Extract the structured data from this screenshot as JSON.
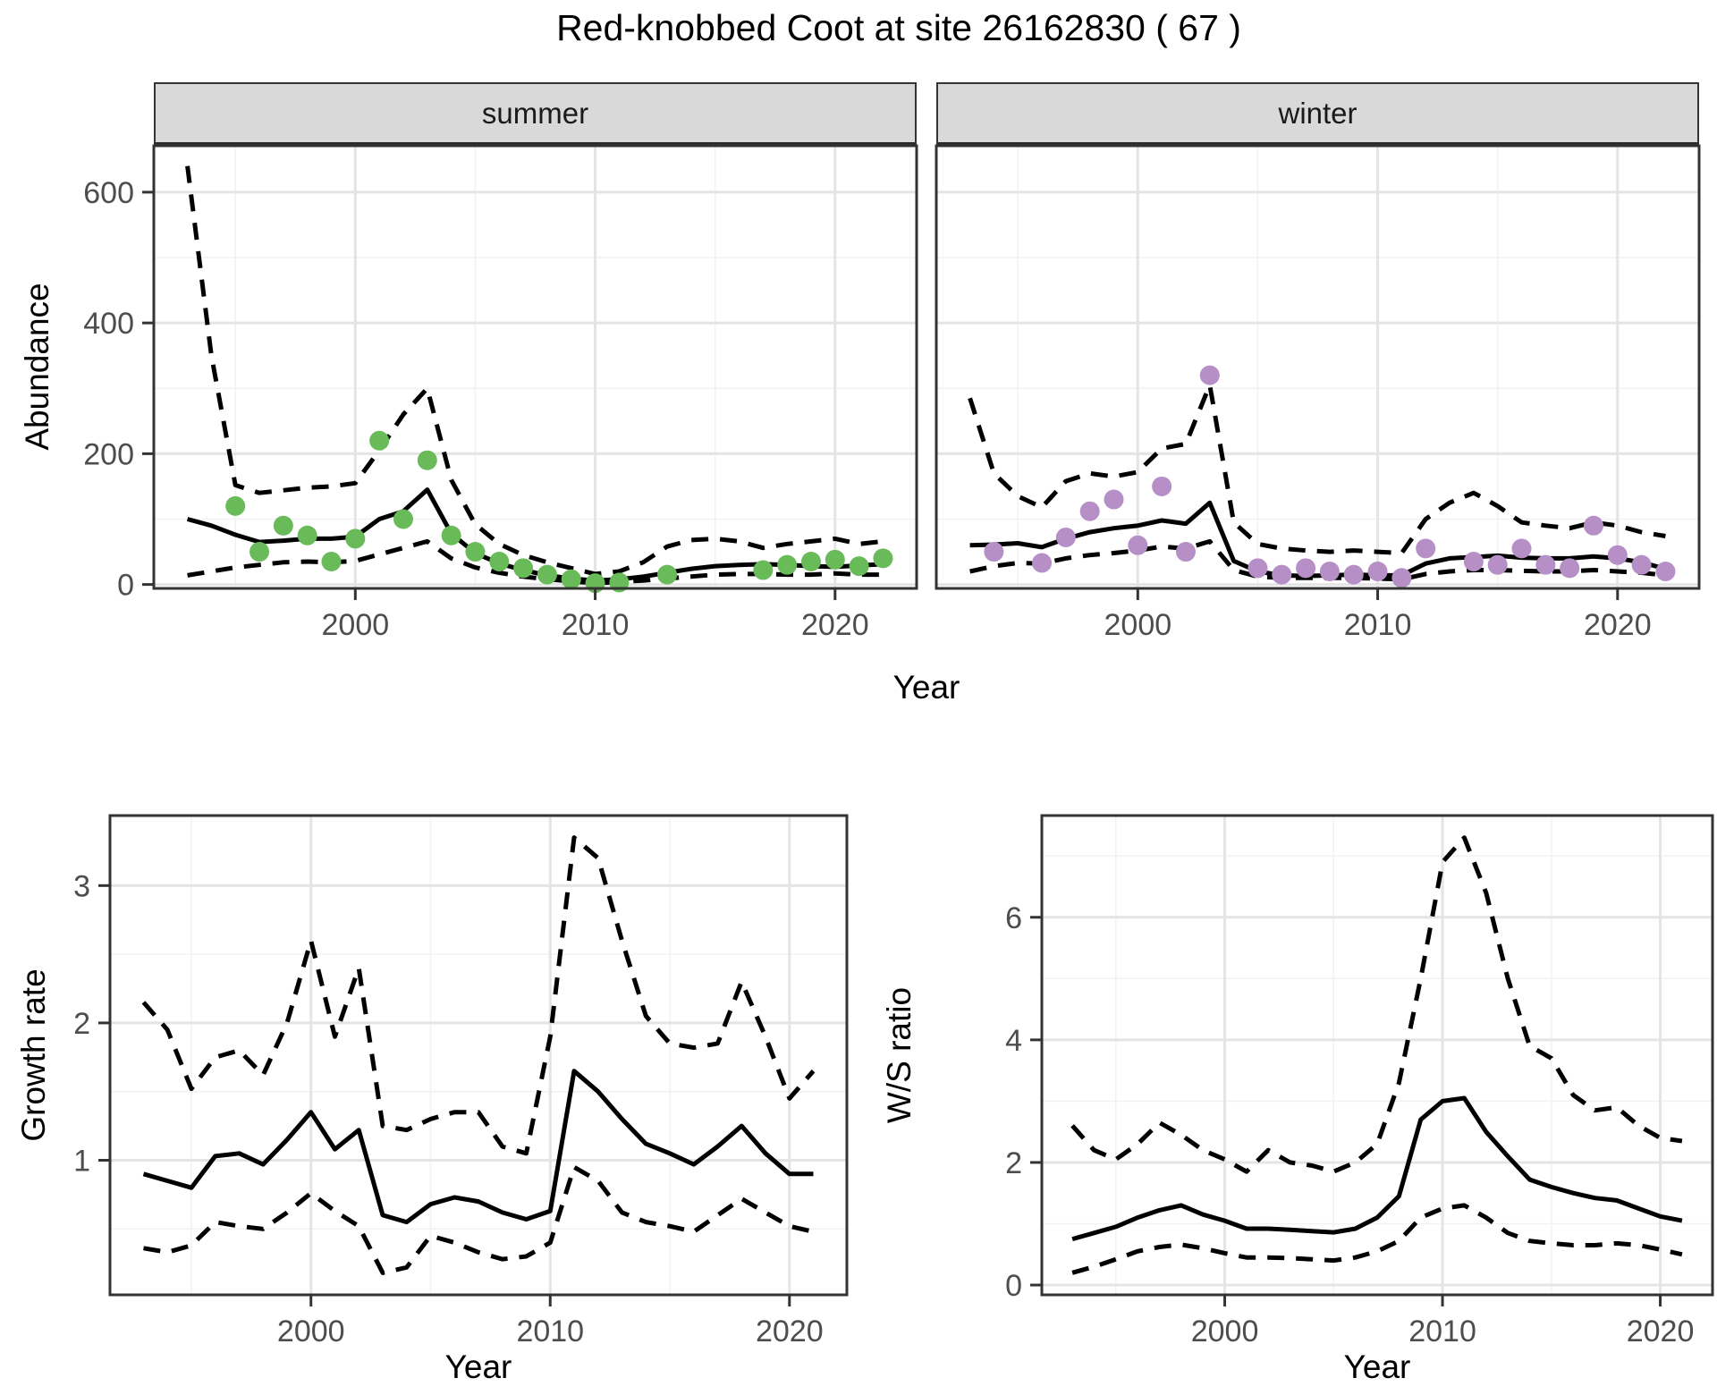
{
  "title": "Red-knobbed Coot at site 26162830 ( 67 )",
  "facets": {
    "summer": "summer",
    "winter": "winter"
  },
  "axes": {
    "abundance_ylabel": "Abundance",
    "top_xlabel": "Year",
    "growth_ylabel": "Growth rate",
    "growth_xlabel": "Year",
    "ws_ylabel": "W/S ratio",
    "ws_xlabel": "Year"
  },
  "colors": {
    "summer_point": "#69bb5a",
    "winter_point": "#b58fc5",
    "line": "#000000",
    "panel_border": "#333333",
    "strip_bg": "#d9d9d9",
    "grid_major": "#e4e4e4",
    "grid_minor": "#f2f2f2",
    "tick_text": "#4d4d4d"
  },
  "chart_data": [
    {
      "id": "summer",
      "type": "line",
      "title": "summer",
      "xlabel": "Year",
      "ylabel": "Abundance",
      "xlim": [
        1991.6,
        2023.4
      ],
      "ylim": [
        -6,
        671
      ],
      "xticks": [
        2000,
        2010,
        2020
      ],
      "yticks": [
        0,
        200,
        400,
        600
      ],
      "xticks_minor": [
        1995,
        2005,
        2015
      ],
      "yticks_minor": [
        100,
        300,
        500
      ],
      "x": [
        1993,
        1994,
        1995,
        1996,
        1997,
        1998,
        1999,
        2000,
        2001,
        2002,
        2003,
        2004,
        2005,
        2006,
        2007,
        2008,
        2009,
        2010,
        2011,
        2012,
        2013,
        2014,
        2015,
        2016,
        2017,
        2018,
        2019,
        2020,
        2021,
        2022
      ],
      "series": [
        {
          "name": "upper_ci",
          "style": "dashed",
          "values": [
            640,
            350,
            152,
            140,
            144,
            148,
            150,
            155,
            205,
            260,
            300,
            160,
            92,
            62,
            45,
            34,
            25,
            16,
            20,
            34,
            58,
            68,
            70,
            66,
            56,
            62,
            66,
            70,
            62,
            66
          ]
        },
        {
          "name": "mean",
          "style": "solid",
          "values": [
            100,
            90,
            76,
            65,
            67,
            70,
            70,
            73,
            100,
            112,
            145,
            78,
            48,
            32,
            22,
            14,
            9,
            6,
            8,
            12,
            18,
            24,
            28,
            30,
            31,
            30,
            28,
            27,
            29,
            31
          ]
        },
        {
          "name": "lower_ci",
          "style": "dashed",
          "values": [
            14,
            20,
            26,
            30,
            34,
            35,
            34,
            36,
            46,
            56,
            66,
            40,
            26,
            18,
            12,
            8,
            5,
            2,
            4,
            6,
            9,
            12,
            15,
            16,
            16,
            15,
            15,
            17,
            15,
            15
          ]
        }
      ],
      "points": {
        "color_key": "summer_point",
        "x": [
          1995,
          1996,
          1997,
          1998,
          1999,
          2000,
          2001,
          2002,
          2003,
          2004,
          2005,
          2006,
          2007,
          2008,
          2009,
          2010,
          2011,
          2013,
          2017,
          2018,
          2019,
          2020,
          2021,
          2022
        ],
        "y": [
          120,
          50,
          90,
          75,
          35,
          70,
          220,
          100,
          190,
          75,
          50,
          35,
          25,
          15,
          8,
          2,
          3,
          15,
          22,
          30,
          35,
          38,
          28,
          40
        ]
      }
    },
    {
      "id": "winter",
      "type": "line",
      "title": "winter",
      "xlabel": "Year",
      "ylabel": "Abundance",
      "xlim": [
        1991.6,
        2023.4
      ],
      "ylim": [
        -6,
        671
      ],
      "xticks": [
        2000,
        2010,
        2020
      ],
      "yticks": [
        0,
        200,
        400,
        600
      ],
      "xticks_minor": [
        1995,
        2005,
        2015
      ],
      "yticks_minor": [
        100,
        300,
        500
      ],
      "x": [
        1993,
        1994,
        1995,
        1996,
        1997,
        1998,
        1999,
        2000,
        2001,
        2002,
        2003,
        2004,
        2005,
        2006,
        2007,
        2008,
        2009,
        2010,
        2011,
        2012,
        2013,
        2014,
        2015,
        2016,
        2017,
        2018,
        2019,
        2020,
        2021,
        2022
      ],
      "series": [
        {
          "name": "upper_ci",
          "style": "dashed",
          "values": [
            285,
            170,
            135,
            118,
            158,
            170,
            165,
            172,
            208,
            215,
            305,
            95,
            62,
            55,
            52,
            50,
            52,
            50,
            48,
            100,
            125,
            140,
            120,
            95,
            90,
            86,
            95,
            90,
            80,
            74
          ]
        },
        {
          "name": "mean",
          "style": "solid",
          "values": [
            60,
            61,
            63,
            57,
            70,
            80,
            86,
            90,
            98,
            93,
            125,
            36,
            20,
            14,
            13,
            14,
            15,
            14,
            14,
            32,
            40,
            42,
            44,
            41,
            40,
            40,
            43,
            40,
            34,
            24
          ]
        },
        {
          "name": "lower_ci",
          "style": "dashed",
          "values": [
            20,
            28,
            33,
            32,
            40,
            45,
            48,
            52,
            58,
            55,
            66,
            22,
            12,
            10,
            10,
            10,
            10,
            9,
            8,
            16,
            20,
            22,
            22,
            21,
            20,
            20,
            22,
            20,
            18,
            14
          ]
        }
      ],
      "points": {
        "color_key": "winter_point",
        "x": [
          1994,
          1996,
          1997,
          1998,
          1999,
          2000,
          2001,
          2002,
          2003,
          2005,
          2006,
          2007,
          2008,
          2009,
          2010,
          2011,
          2012,
          2014,
          2015,
          2016,
          2017,
          2018,
          2019,
          2020,
          2021,
          2022
        ],
        "y": [
          50,
          33,
          72,
          112,
          130,
          60,
          150,
          50,
          320,
          25,
          15,
          25,
          20,
          15,
          20,
          10,
          55,
          35,
          30,
          55,
          30,
          25,
          90,
          45,
          30,
          20
        ]
      }
    },
    {
      "id": "growth",
      "type": "line",
      "title": "Growth rate",
      "xlabel": "Year",
      "ylabel": "Growth rate",
      "xlim": [
        1991.6,
        2022.4
      ],
      "ylim": [
        0.02,
        3.51
      ],
      "xticks": [
        2000,
        2010,
        2020
      ],
      "yticks": [
        1,
        2,
        3
      ],
      "xticks_minor": [
        1995,
        2005,
        2015
      ],
      "yticks_minor": [
        0.5,
        1.5,
        2.5,
        3.5
      ],
      "x": [
        1993,
        1994,
        1995,
        1996,
        1997,
        1998,
        1999,
        2000,
        2001,
        2002,
        2003,
        2004,
        2005,
        2006,
        2007,
        2008,
        2009,
        2010,
        2011,
        2012,
        2013,
        2014,
        2015,
        2016,
        2017,
        2018,
        2019,
        2020,
        2021
      ],
      "series": [
        {
          "name": "upper_ci",
          "style": "dashed",
          "values": [
            2.15,
            1.95,
            1.52,
            1.75,
            1.8,
            1.62,
            2.0,
            2.6,
            1.9,
            2.4,
            1.25,
            1.22,
            1.3,
            1.35,
            1.35,
            1.1,
            1.05,
            1.9,
            3.35,
            3.2,
            2.6,
            2.05,
            1.85,
            1.82,
            1.85,
            2.3,
            1.9,
            1.45,
            1.65
          ]
        },
        {
          "name": "mean",
          "style": "solid",
          "values": [
            0.9,
            0.85,
            0.8,
            1.03,
            1.05,
            0.97,
            1.15,
            1.35,
            1.08,
            1.22,
            0.6,
            0.55,
            0.68,
            0.73,
            0.7,
            0.62,
            0.57,
            0.63,
            1.65,
            1.5,
            1.3,
            1.12,
            1.05,
            0.97,
            1.1,
            1.25,
            1.05,
            0.9,
            0.9
          ]
        },
        {
          "name": "lower_ci",
          "style": "dashed",
          "values": [
            0.36,
            0.33,
            0.38,
            0.55,
            0.52,
            0.5,
            0.62,
            0.76,
            0.63,
            0.52,
            0.18,
            0.22,
            0.45,
            0.4,
            0.33,
            0.28,
            0.3,
            0.4,
            0.95,
            0.85,
            0.62,
            0.55,
            0.52,
            0.48,
            0.6,
            0.72,
            0.62,
            0.52,
            0.48
          ]
        }
      ]
    },
    {
      "id": "ws",
      "type": "line",
      "title": "W/S ratio",
      "xlabel": "Year",
      "ylabel": "W/S ratio",
      "xlim": [
        1991.6,
        2022.4
      ],
      "ylim": [
        -0.16,
        7.66
      ],
      "xticks": [
        2000,
        2010,
        2020
      ],
      "yticks": [
        0,
        2,
        4,
        6
      ],
      "xticks_minor": [
        1995,
        2005,
        2015
      ],
      "yticks_minor": [
        1,
        3,
        5,
        7
      ],
      "x": [
        1993,
        1994,
        1995,
        1996,
        1997,
        1998,
        1999,
        2000,
        2001,
        2002,
        2003,
        2004,
        2005,
        2006,
        2007,
        2008,
        2009,
        2010,
        2011,
        2012,
        2013,
        2014,
        2015,
        2016,
        2017,
        2018,
        2019,
        2020,
        2021
      ],
      "series": [
        {
          "name": "upper_ci",
          "style": "dashed",
          "values": [
            2.6,
            2.2,
            2.05,
            2.3,
            2.65,
            2.45,
            2.2,
            2.05,
            1.85,
            2.2,
            2.0,
            1.95,
            1.85,
            2.0,
            2.3,
            3.3,
            5.0,
            6.9,
            7.3,
            6.4,
            5.0,
            3.9,
            3.7,
            3.1,
            2.85,
            2.9,
            2.6,
            2.4,
            2.35
          ]
        },
        {
          "name": "mean",
          "style": "solid",
          "values": [
            0.75,
            0.85,
            0.95,
            1.1,
            1.22,
            1.3,
            1.15,
            1.05,
            0.92,
            0.92,
            0.9,
            0.88,
            0.86,
            0.92,
            1.1,
            1.45,
            2.7,
            3.0,
            3.05,
            2.5,
            2.1,
            1.72,
            1.6,
            1.5,
            1.42,
            1.38,
            1.25,
            1.12,
            1.05
          ]
        },
        {
          "name": "lower_ci",
          "style": "dashed",
          "values": [
            0.2,
            0.3,
            0.42,
            0.55,
            0.62,
            0.66,
            0.6,
            0.52,
            0.45,
            0.45,
            0.44,
            0.42,
            0.4,
            0.45,
            0.55,
            0.72,
            1.1,
            1.25,
            1.3,
            1.1,
            0.85,
            0.72,
            0.68,
            0.65,
            0.65,
            0.68,
            0.65,
            0.58,
            0.5
          ]
        }
      ]
    }
  ]
}
